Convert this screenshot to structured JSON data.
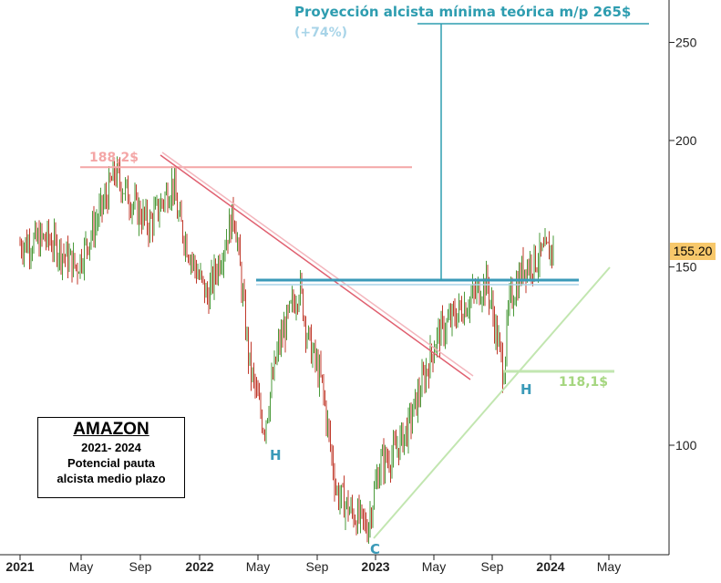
{
  "chart_data": {
    "type": "line",
    "title": "AMAZON",
    "subtitle_lines": [
      "2021- 2024",
      "Potencial pauta",
      "alcista medio plazo"
    ],
    "y_axis": {
      "scale": "log",
      "ticks": [
        100,
        150,
        200,
        250
      ]
    },
    "x_axis": {
      "ticks": [
        "2021",
        "May",
        "Sep",
        "2022",
        "May",
        "Sep",
        "2023",
        "May",
        "Sep",
        "2024",
        "May"
      ]
    },
    "last_price_label": "155.20",
    "price_series": {
      "name": "",
      "x": [
        "2021-01",
        "2021-03",
        "2021-05",
        "2021-07",
        "2021-07-20",
        "2021-09",
        "2021-10",
        "2021-11-20",
        "2021-12",
        "2022-01",
        "2022-02",
        "2022-03-30",
        "2022-05",
        "2022-06",
        "2022-07",
        "2022-08-15",
        "2022-09",
        "2022-10",
        "2022-11",
        "2022-12",
        "2023-01-05",
        "2023-02",
        "2023-03",
        "2023-04",
        "2023-05",
        "2023-06",
        "2023-07",
        "2023-08",
        "2023-09-15",
        "2023-10-20",
        "2023-11",
        "2023-12",
        "2024-01",
        "2024-02-05"
      ],
      "y": [
        158,
        160,
        150,
        175,
        186,
        172,
        165,
        182,
        168,
        152,
        140,
        170,
        120,
        104,
        125,
        144,
        128,
        115,
        90,
        86,
        83,
        96,
        98,
        104,
        115,
        128,
        133,
        138,
        145,
        118,
        138,
        150,
        153,
        157
      ]
    },
    "annotations": {
      "projection_title": "Proyección alcista mínima teórica m/p 265$",
      "projection_pct": "(+74%)",
      "resistance_label": "188,2$",
      "right_h_level": "118,1$",
      "left_shoulder": "H",
      "head": "C",
      "right_shoulder": "H"
    },
    "levels": {
      "resistance_old": 188.2,
      "neckline": 145,
      "right_shoulder_level": 118.1,
      "target": 265
    },
    "colors": {
      "price_up": "#4a9a3a",
      "price_down": "#c0392b",
      "neckline": "#3a9ab8",
      "projection": "#2e9db0",
      "projection_pct": "#a8d4e8",
      "trendline_down": "#e06070",
      "resistance": "#f4a6a6",
      "support": "#c2e6b0",
      "right_h_label": "#a5d67f",
      "price_badge": "#f7c86b"
    }
  }
}
